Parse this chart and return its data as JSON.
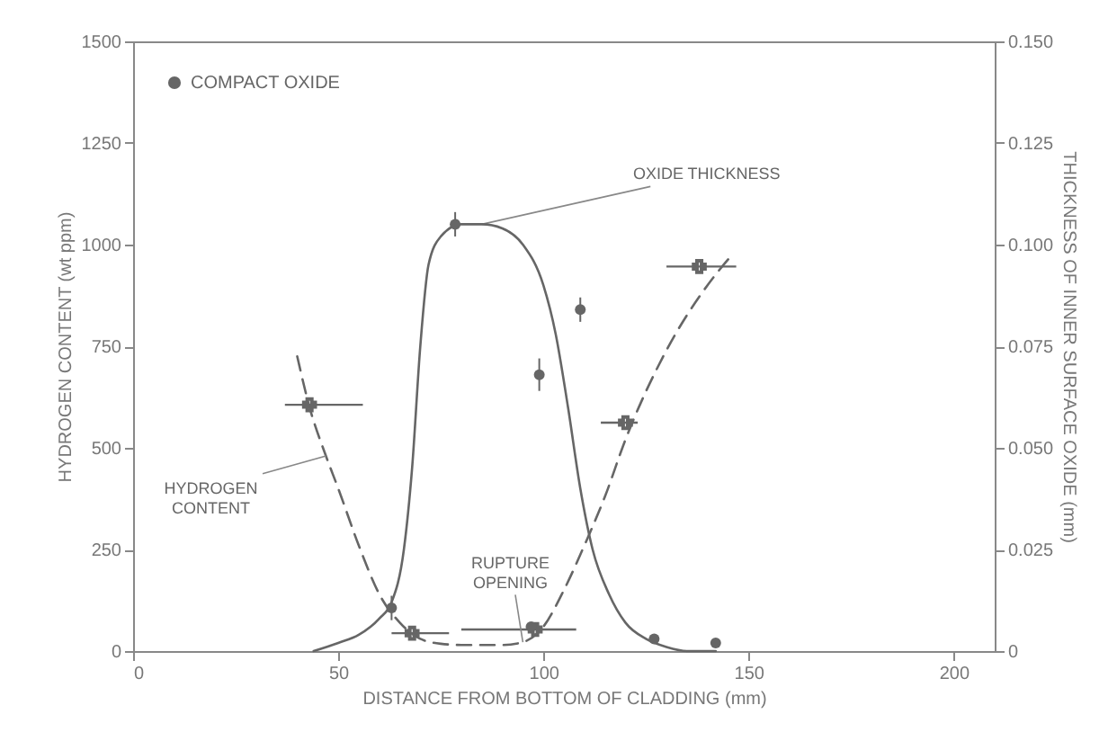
{
  "chart_data": {
    "type": "line",
    "xlabel": "DISTANCE FROM BOTTOM OF CLADDING (mm)",
    "ylabel": "HYDROGEN CONTENT (wt ppm)",
    "y2label": "THICKNESS OF INNER SURFACE OXIDE (mm)",
    "xlim": [
      0,
      210
    ],
    "xticks": [
      0,
      50,
      100,
      150,
      200
    ],
    "ylim": [
      0,
      1500
    ],
    "yticks": [
      0,
      250,
      500,
      750,
      1000,
      1250,
      1500
    ],
    "x": [
      40,
      43,
      47,
      50,
      55,
      60,
      65,
      70,
      75,
      80,
      90,
      95,
      100,
      105,
      110,
      115,
      120,
      130,
      140,
      146
    ],
    "y2lim": [
      0,
      0.15
    ],
    "y2ticks": [
      0,
      0.025,
      {
        "value": 0.05,
        "label": "0.050"
      },
      0.075,
      {
        "value": 0.1,
        "label": "0.100"
      },
      0.125,
      {
        "value": 0.15,
        "label": "0.150"
      }
    ],
    "legend": "top left",
    "series": [
      {
        "line_style": "dashed",
        "color": "#666666",
        "values": [
          725,
          600,
          480,
          400,
          260,
          140,
          70,
          30,
          18,
          15,
          15,
          22,
          60,
          150,
          260,
          380,
          520,
          740,
          900,
          975
        ]
      },
      {
        "type": "scatter",
        "marker": "cross",
        "color": "#666666",
        "x": [
          43,
          68,
          98,
          120,
          138
        ],
        "values": [
          606,
          44,
          53,
          562,
          946
        ],
        "xerrors": [
          [
            37,
            56
          ],
          [
            63,
            77
          ],
          [
            80,
            108
          ],
          [
            114,
            123
          ],
          [
            130,
            147
          ]
        ]
      },
      {
        "axis": "y2",
        "line_style": "solid",
        "color": "#666666",
        "x": [
          44,
          50,
          55,
          60,
          63,
          66,
          68,
          70,
          72,
          75,
          80,
          85,
          90,
          95,
          100,
          103,
          106,
          109,
          112,
          116,
          120,
          125,
          130,
          135,
          142
        ],
        "values": [
          0,
          0.002,
          0.004,
          0.008,
          0.012,
          0.025,
          0.045,
          0.075,
          0.095,
          0.102,
          0.105,
          0.105,
          0.104,
          0.1,
          0.09,
          0.078,
          0.06,
          0.04,
          0.025,
          0.014,
          0.007,
          0.003,
          0.001,
          0,
          0
        ]
      },
      {
        "name": "COMPACT OXIDE",
        "type": "scatter",
        "marker": "circle",
        "axis": "y2",
        "color": "#666666",
        "x": [
          63,
          78.5,
          97,
          99,
          109,
          127,
          142
        ],
        "values": [
          0.0106,
          0.105,
          0.006,
          0.068,
          0.084,
          0.003,
          0.002
        ],
        "errors": [
          0.003,
          0.003,
          null,
          0.004,
          0.003,
          null,
          null
        ]
      }
    ],
    "annotations": [
      {
        "text": "OXIDE THICKNESS",
        "x": 85,
        "y": 1050
      },
      {
        "text": "HYDROGEN\nCONTENT",
        "x": 47,
        "y": 480
      },
      {
        "text": "RUPTURE\nOPENING",
        "x": 95,
        "y": 22
      }
    ]
  }
}
